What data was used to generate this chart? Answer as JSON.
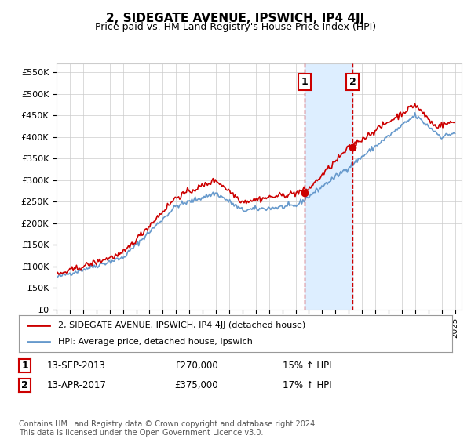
{
  "title": "2, SIDEGATE AVENUE, IPSWICH, IP4 4JJ",
  "subtitle": "Price paid vs. HM Land Registry's House Price Index (HPI)",
  "ylabel_ticks": [
    "£0",
    "£50K",
    "£100K",
    "£150K",
    "£200K",
    "£250K",
    "£300K",
    "£350K",
    "£400K",
    "£450K",
    "£500K",
    "£550K"
  ],
  "ytick_values": [
    0,
    50000,
    100000,
    150000,
    200000,
    250000,
    300000,
    350000,
    400000,
    450000,
    500000,
    550000
  ],
  "ylim": [
    0,
    570000
  ],
  "xlim_start": 1995.0,
  "xlim_end": 2025.5,
  "event1_x": 2013.7,
  "event1_y": 270000,
  "event2_x": 2017.28,
  "event2_y": 375000,
  "legend_line1": "2, SIDEGATE AVENUE, IPSWICH, IP4 4JJ (detached house)",
  "legend_line2": "HPI: Average price, detached house, Ipswich",
  "table_row1": [
    "1",
    "13-SEP-2013",
    "£270,000",
    "15% ↑ HPI"
  ],
  "table_row2": [
    "2",
    "13-APR-2017",
    "£375,000",
    "17% ↑ HPI"
  ],
  "footer": "Contains HM Land Registry data © Crown copyright and database right 2024.\nThis data is licensed under the Open Government Licence v3.0.",
  "red_color": "#cc0000",
  "blue_color": "#6699cc",
  "shade_color": "#ddeeff",
  "background_color": "#ffffff",
  "grid_color": "#cccccc"
}
